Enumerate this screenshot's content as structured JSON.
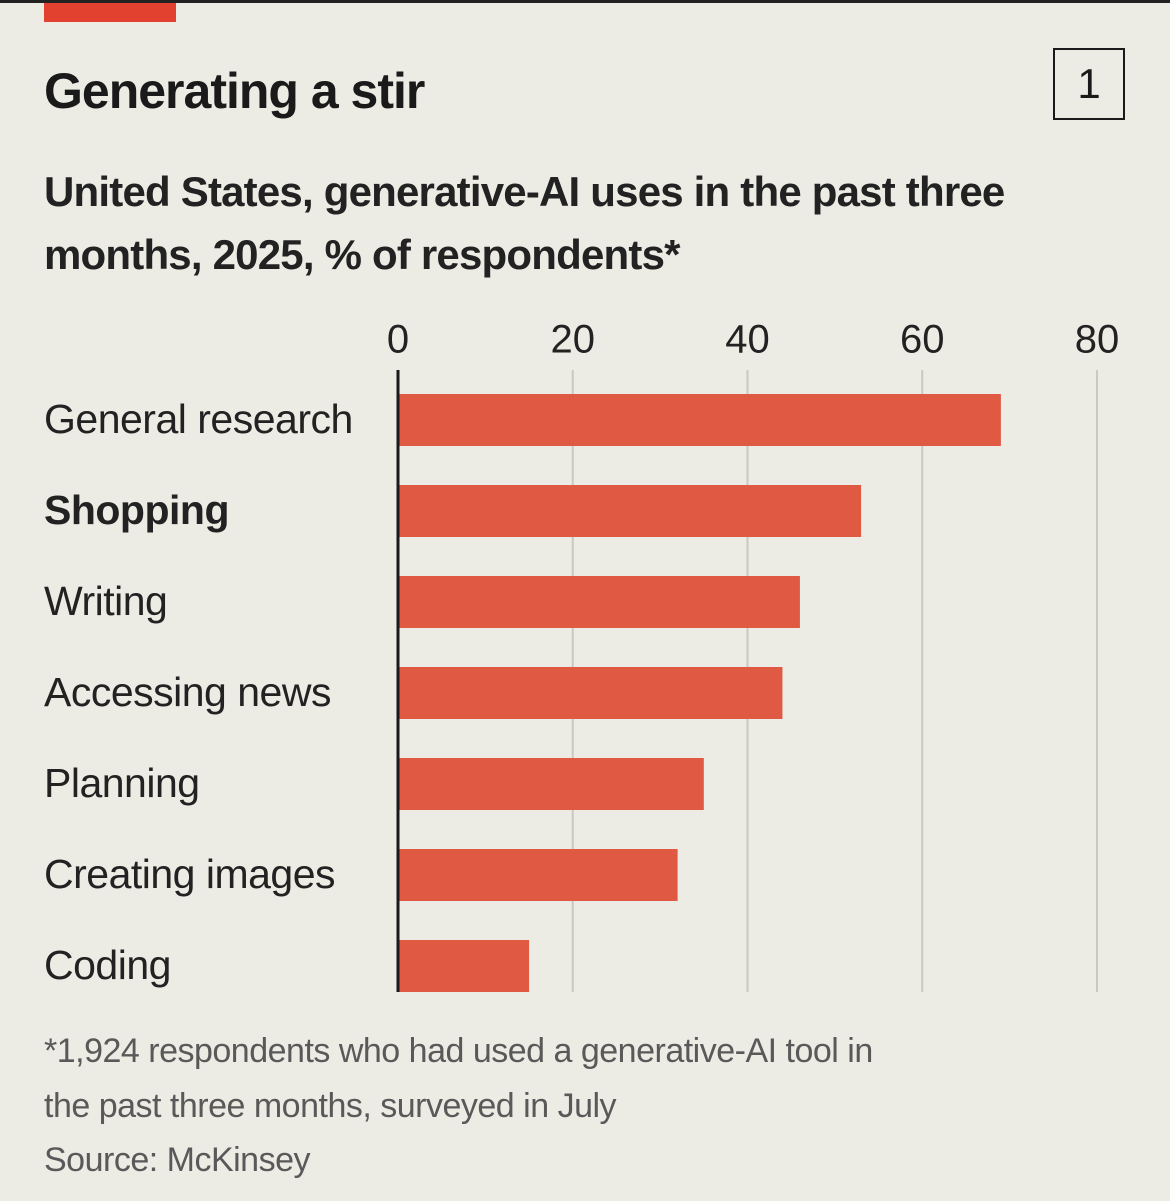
{
  "chart_data": {
    "type": "bar",
    "orientation": "horizontal",
    "title": "Generating a stir",
    "chart_number": "1",
    "subtitle": "United States, generative-AI uses in the past three months, 2025, % of respondents*",
    "categories": [
      "General research",
      "Shopping",
      "Writing",
      "Accessing news",
      "Planning",
      "Creating images",
      "Coding"
    ],
    "values": [
      69,
      53,
      46,
      44,
      35,
      32,
      15
    ],
    "bold_indices": [
      1
    ],
    "color": "#e05a43",
    "xlim": [
      0,
      80
    ],
    "xticks": [
      0,
      20,
      40,
      60,
      80
    ],
    "grid": true,
    "footnote": "*1,924 respondents who had used a generative-AI tool in the past three months, surveyed in July",
    "source": "Source: McKinsey"
  }
}
